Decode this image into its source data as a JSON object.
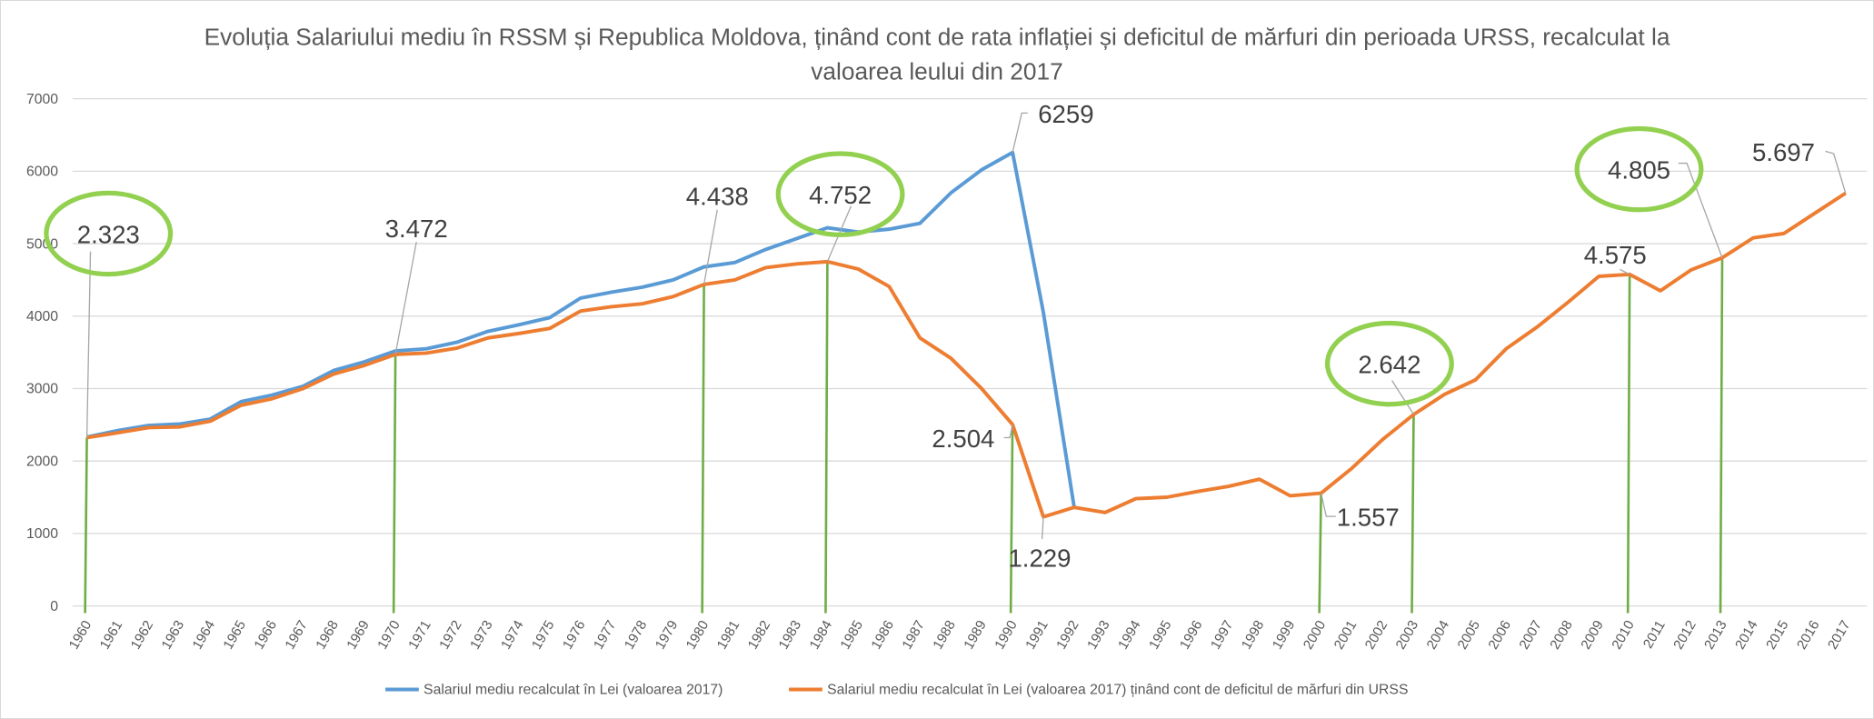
{
  "chart_data": {
    "type": "line",
    "title": "Evoluția Salariului mediu în RSSM și Republica Moldova, ținând cont de rata inflației și deficitul de mărfuri din perioada URSS, recalculat la valoarea leului din 2017",
    "title_lines": [
      "Evoluția Salariului mediu în RSSM și Republica Moldova, ținând cont de rata inflației și deficitul de mărfuri din perioada URSS, recalculat la",
      "valoarea leului din 2017"
    ],
    "xlabel": "",
    "ylabel": "",
    "ylim": [
      0,
      7000
    ],
    "yticks": [
      0,
      1000,
      2000,
      3000,
      4000,
      5000,
      6000,
      7000
    ],
    "grid": true,
    "legend_position": "bottom",
    "x": [
      1960,
      1961,
      1962,
      1963,
      1964,
      1965,
      1966,
      1967,
      1968,
      1969,
      1970,
      1971,
      1972,
      1973,
      1974,
      1975,
      1976,
      1977,
      1978,
      1979,
      1980,
      1981,
      1982,
      1983,
      1984,
      1985,
      1986,
      1987,
      1988,
      1989,
      1990,
      1991,
      1992,
      1993,
      1994,
      1995,
      1996,
      1997,
      1998,
      1999,
      2000,
      2001,
      2002,
      2003,
      2004,
      2005,
      2006,
      2007,
      2008,
      2009,
      2010,
      2011,
      2012,
      2013,
      2014,
      2015,
      2016,
      2017
    ],
    "series": [
      {
        "name": "Salariul mediu recalculat în Lei (valoarea 2017)",
        "color": "#5b9bd5",
        "values": [
          2330,
          2420,
          2490,
          2510,
          2580,
          2820,
          2910,
          3030,
          3250,
          3370,
          3520,
          3550,
          3640,
          3790,
          3880,
          3980,
          4250,
          4330,
          4400,
          4500,
          4680,
          4740,
          4920,
          5070,
          5220,
          5160,
          5200,
          5280,
          5700,
          6020,
          6259,
          4050,
          1360,
          null,
          null,
          null,
          null,
          null,
          null,
          null,
          null,
          null,
          null,
          null,
          null,
          null,
          null,
          null,
          null,
          null,
          null,
          null,
          null,
          null,
          null,
          null,
          null,
          null
        ]
      },
      {
        "name": "Salariul mediu recalculat în Lei (valoarea 2017) ținând cont de deficitul de mărfuri din URSS",
        "color": "#ed7d31",
        "values": [
          2323,
          2390,
          2460,
          2470,
          2550,
          2770,
          2860,
          3000,
          3200,
          3320,
          3472,
          3490,
          3560,
          3700,
          3760,
          3830,
          4070,
          4130,
          4170,
          4270,
          4438,
          4500,
          4670,
          4720,
          4752,
          4650,
          4410,
          3700,
          3420,
          3000,
          2504,
          1229,
          1360,
          1290,
          1480,
          1500,
          1580,
          1650,
          1750,
          1520,
          1557,
          1900,
          2300,
          2642,
          2920,
          3120,
          3550,
          3850,
          4190,
          4550,
          4575,
          4350,
          4640,
          4805,
          5080,
          5140,
          5420,
          5697
        ]
      }
    ],
    "annotations": [
      {
        "year": 1960,
        "series": 1,
        "label": "2.323",
        "circled": true,
        "marker_line": true
      },
      {
        "year": 1970,
        "series": 1,
        "label": "3.472",
        "circled": false,
        "marker_line": true
      },
      {
        "year": 1980,
        "series": 1,
        "label": "4.438",
        "circled": false,
        "marker_line": true
      },
      {
        "year": 1984,
        "series": 1,
        "label": "4.752",
        "circled": true,
        "marker_line": true
      },
      {
        "year": 1990,
        "series": 0,
        "label": "6259",
        "circled": false,
        "marker_line": false
      },
      {
        "year": 1990,
        "series": 1,
        "label": "2.504",
        "circled": false,
        "marker_line": true
      },
      {
        "year": 1991,
        "series": 1,
        "label": "1.229",
        "circled": false,
        "marker_line": false
      },
      {
        "year": 2000,
        "series": 1,
        "label": "1.557",
        "circled": false,
        "marker_line": true
      },
      {
        "year": 2003,
        "series": 1,
        "label": "2.642",
        "circled": true,
        "marker_line": true
      },
      {
        "year": 2010,
        "series": 1,
        "label": "4.575",
        "circled": false,
        "marker_line": true
      },
      {
        "year": 2013,
        "series": 1,
        "label": "4.805",
        "circled": true,
        "marker_line": true
      },
      {
        "year": 2017,
        "series": 1,
        "label": "5.697",
        "circled": false,
        "marker_line": false
      }
    ],
    "highlight_color": "#92d050",
    "marker_line_color": "#70ad47"
  }
}
